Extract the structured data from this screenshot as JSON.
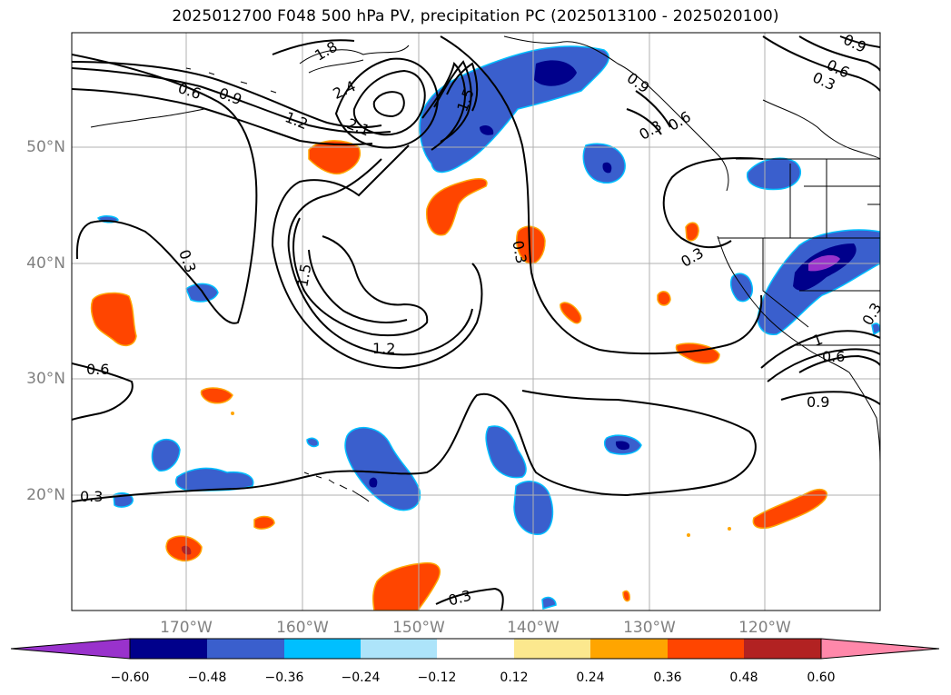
{
  "title": "2025012700 F048 500 hPa PV, precipitation PC (2025013100 - 2025020100)",
  "latitude_labels": [
    "50°N",
    "40°N",
    "30°N",
    "20°N"
  ],
  "longitude_labels": [
    "170°W",
    "160°W",
    "150°W",
    "140°W",
    "130°W",
    "120°W"
  ],
  "contour_labels": [
    "0.6",
    "0.9",
    "1.2",
    "1.8",
    "2.4",
    "2.1",
    "1.5",
    "0.3",
    "0.3",
    "0.6",
    "0.3",
    "1.5",
    "1.2",
    "0.3",
    "0.6",
    "0.3",
    "0.9",
    "0.9",
    "0.6",
    "0.3",
    "0.3",
    "0.3",
    "1",
    "0.9",
    "0.6"
  ],
  "colorbar": {
    "tick_labels": [
      "−0.60",
      "−0.48",
      "−0.36",
      "−0.24",
      "−0.12",
      "0.12",
      "0.24",
      "0.36",
      "0.48",
      "0.60"
    ],
    "colors": [
      "#9932CC",
      "#00008B",
      "#3A5FCD",
      "#00BFFF",
      "#ADE4FA",
      "#FFFFFF",
      "#FCE88E",
      "#FFA500",
      "#FF4500",
      "#B22222",
      "#FF88AA"
    ]
  },
  "colors": {
    "contour_line": "#000000",
    "grid_line": "#B0B0B0",
    "coastline": "#000000",
    "tick_label": "#808080"
  }
}
